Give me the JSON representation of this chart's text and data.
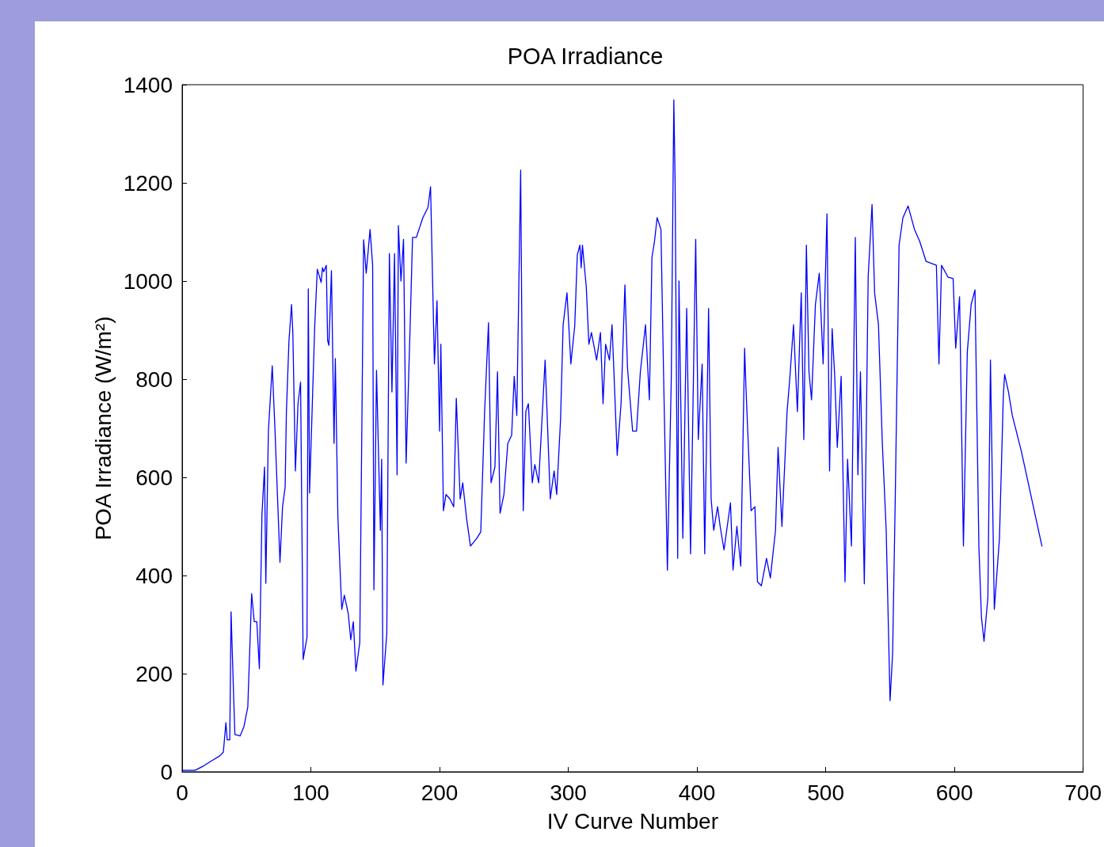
{
  "chart_data": {
    "type": "line",
    "title": "POA Irradiance",
    "xlabel": "IV Curve Number",
    "ylabel": "POA Irradiance (W/m²)",
    "x": [
      0,
      10,
      16,
      22,
      29,
      32,
      34,
      35,
      37,
      38,
      40,
      41,
      45,
      48,
      51,
      54,
      56,
      58,
      60,
      62,
      64,
      65,
      67,
      70,
      72,
      76,
      78,
      80,
      81,
      83,
      85,
      86,
      88,
      90,
      92,
      94,
      97,
      98,
      99,
      103,
      105,
      108,
      109,
      110,
      112,
      113,
      114,
      116,
      118,
      119,
      121,
      124,
      126,
      129,
      131,
      133,
      135,
      138,
      141,
      143,
      146,
      148,
      149,
      151,
      154,
      155,
      156,
      159,
      161,
      163,
      165,
      167,
      168,
      170,
      172,
      174,
      177,
      179,
      182,
      184,
      187,
      191,
      193,
      196,
      198,
      200,
      201,
      203,
      205,
      208,
      211,
      213,
      216,
      218,
      221,
      224,
      229,
      232,
      235,
      238,
      240,
      243,
      245,
      247,
      250,
      253,
      256,
      258,
      260,
      263,
      265,
      267,
      269,
      272,
      274,
      277,
      282,
      286,
      289,
      291,
      294,
      296,
      299,
      302,
      305,
      307,
      309,
      310,
      311,
      314,
      316,
      318,
      322,
      325,
      327,
      329,
      332,
      334,
      338,
      341,
      344,
      346,
      350,
      353,
      356,
      360,
      363,
      365,
      367,
      369,
      372,
      374,
      377,
      380,
      382,
      383,
      385,
      386,
      389,
      392,
      395,
      399,
      401,
      404,
      406,
      409,
      411,
      413,
      416,
      418,
      421,
      426,
      428,
      431,
      434,
      437,
      438,
      442,
      445,
      447,
      450,
      454,
      457,
      461,
      463,
      466,
      470,
      472,
      475,
      478,
      481,
      483,
      485,
      487,
      489,
      492,
      495,
      498,
      501,
      503,
      505,
      507,
      509,
      512,
      515,
      517,
      520,
      523,
      525,
      527,
      530,
      533,
      536,
      538,
      541,
      544,
      547,
      550,
      552,
      554,
      557,
      560,
      564,
      569,
      573,
      578,
      586,
      588,
      590,
      595,
      599,
      601,
      604,
      607,
      610,
      613,
      616,
      619,
      621,
      623,
      626,
      628,
      631,
      635,
      638,
      639,
      642,
      645,
      652,
      658,
      664,
      668
    ],
    "series": [
      {
        "color": "#0000ff",
        "values": [
          3,
          3,
          11,
          21,
          32,
          40,
          100,
          65,
          65,
          326,
          153,
          76,
          73,
          92,
          132,
          363,
          306,
          306,
          210,
          524,
          621,
          384,
          694,
          827,
          705,
          427,
          540,
          580,
          734,
          879,
          952,
          895,
          613,
          750,
          794,
          229,
          274,
          984,
          568,
          908,
          1024,
          997,
          1027,
          1019,
          1032,
          879,
          869,
          1021,
          669,
          842,
          519,
          331,
          360,
          323,
          269,
          306,
          205,
          263,
          1084,
          1016,
          1105,
          1032,
          371,
          818,
          492,
          637,
          177,
          282,
          1056,
          774,
          1056,
          605,
          1113,
          1000,
          1085,
          629,
          895,
          1089,
          1089,
          1105,
          1129,
          1150,
          1192,
          831,
          960,
          694,
          871,
          532,
          565,
          556,
          540,
          761,
          556,
          589,
          516,
          460,
          476,
          489,
          734,
          915,
          589,
          621,
          815,
          527,
          565,
          669,
          686,
          806,
          726,
          1226,
          532,
          734,
          750,
          589,
          626,
          589,
          839,
          556,
          613,
          565,
          718,
          911,
          976,
          831,
          908,
          1053,
          1073,
          1027,
          1073,
          987,
          871,
          895,
          839,
          895,
          750,
          871,
          839,
          911,
          645,
          750,
          992,
          823,
          694,
          694,
          815,
          911,
          758,
          1048,
          1081,
          1129,
          1105,
          815,
          411,
          798,
          1369,
          1202,
          435,
          1000,
          476,
          944,
          444,
          1085,
          677,
          831,
          444,
          944,
          556,
          492,
          540,
          500,
          452,
          548,
          411,
          500,
          419,
          863,
          785,
          532,
          540,
          387,
          379,
          435,
          395,
          492,
          661,
          500,
          734,
          798,
          911,
          734,
          976,
          677,
          1073,
          815,
          758,
          952,
          1016,
          831,
          1137,
          613,
          903,
          806,
          661,
          806,
          387,
          637,
          460,
          1089,
          605,
          815,
          383,
          1008,
          1156,
          976,
          911,
          669,
          492,
          145,
          242,
          553,
          1073,
          1129,
          1153,
          1105,
          1081,
          1040,
          1032,
          831,
          1032,
          1008,
          1005,
          863,
          968,
          460,
          855,
          952,
          982,
          460,
          315,
          266,
          355,
          839,
          331,
          476,
          766,
          810,
          774,
          726,
          653,
          581,
          508,
          460
        ]
      }
    ],
    "xlim": [
      0,
      700
    ],
    "xticks": [
      0,
      100,
      200,
      300,
      400,
      500,
      600,
      700
    ],
    "ylim": [
      0,
      1400
    ],
    "yticks": [
      0,
      200,
      400,
      600,
      800,
      1000,
      1200,
      1400
    ],
    "grid": false,
    "marker": "none",
    "line_style": "solid"
  }
}
